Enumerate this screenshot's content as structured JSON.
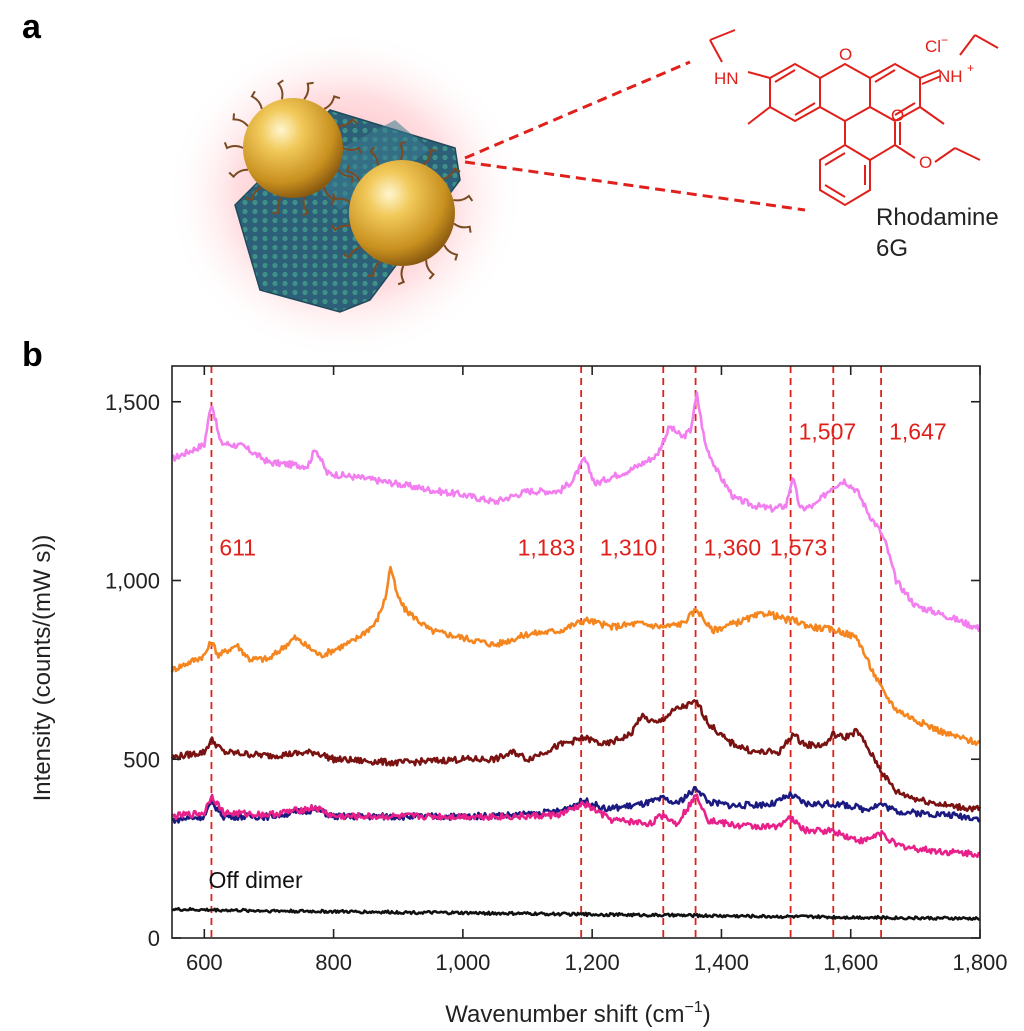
{
  "panels": {
    "a": "a",
    "b": "b"
  },
  "molecule": {
    "name_line1": "Rhodamine",
    "name_line2": "6G",
    "labels": {
      "hn": "HN",
      "nh": "NH",
      "nh_charge": "+",
      "cl": "Cl",
      "cl_charge": "−",
      "o_ring": "O",
      "o_carbonyl": "O",
      "o_ester": "O"
    }
  },
  "colors": {
    "peak_line": "#e0201b",
    "gold": "#d4a23a",
    "graphene": "#2f6f86",
    "ligand": "#7a4a22",
    "glow": "#ff7f8a"
  },
  "chart_data": {
    "type": "line",
    "xlabel": "Wavenumber shift (cm",
    "xlabel_sup": "−1",
    "xlabel_end": ")",
    "ylabel": "Intensity (counts/(mW s))",
    "xlim": [
      550,
      1800
    ],
    "ylim": [
      0,
      1600
    ],
    "x_ticks": [
      {
        "value": 600,
        "label": "600"
      },
      {
        "value": 800,
        "label": "800"
      },
      {
        "value": 1000,
        "label": "1,000"
      },
      {
        "value": 1200,
        "label": "1,200"
      },
      {
        "value": 1400,
        "label": "1,400"
      },
      {
        "value": 1600,
        "label": "1,600"
      },
      {
        "value": 1800,
        "label": "1,800"
      }
    ],
    "y_ticks": [
      {
        "value": 0,
        "label": "0"
      },
      {
        "value": 500,
        "label": "500"
      },
      {
        "value": 1000,
        "label": "1,000"
      },
      {
        "value": 1500,
        "label": "1,500"
      }
    ],
    "peak_lines": [
      611,
      1183,
      1310,
      1360,
      1507,
      1573,
      1647
    ],
    "peak_labels": [
      {
        "text": "611",
        "x": 611,
        "y": 1070
      },
      {
        "text": "1,183",
        "x": 1183,
        "y": 1070
      },
      {
        "text": "1,310",
        "x": 1310,
        "y": 1070
      },
      {
        "text": "1,360",
        "x": 1360,
        "y": 1070
      },
      {
        "text": "1,507",
        "x": 1507,
        "y": 1395
      },
      {
        "text": "1,573",
        "x": 1573,
        "y": 1070
      },
      {
        "text": "1,647",
        "x": 1647,
        "y": 1395
      }
    ],
    "annotation": {
      "text": "Off dimer",
      "x": 560,
      "y": 140
    },
    "series": [
      {
        "color": "#f27ef0",
        "x": [
          550,
          600,
          611,
          625,
          660,
          700,
          760,
          772,
          790,
          850,
          900,
          960,
          1000,
          1050,
          1100,
          1150,
          1170,
          1188,
          1205,
          1230,
          1260,
          1300,
          1320,
          1340,
          1352,
          1362,
          1375,
          1395,
          1420,
          1450,
          1480,
          1500,
          1510,
          1522,
          1545,
          1570,
          1590,
          1610,
          1630,
          1645,
          1655,
          1670,
          1700,
          1750,
          1800
        ],
        "y": [
          1340,
          1380,
          1500,
          1385,
          1375,
          1330,
          1320,
          1370,
          1300,
          1285,
          1270,
          1250,
          1240,
          1220,
          1250,
          1250,
          1280,
          1340,
          1270,
          1290,
          1310,
          1350,
          1430,
          1400,
          1420,
          1520,
          1380,
          1300,
          1230,
          1210,
          1200,
          1210,
          1290,
          1200,
          1210,
          1260,
          1280,
          1250,
          1180,
          1140,
          1100,
          1000,
          930,
          900,
          865
        ]
      },
      {
        "color": "#f5861f",
        "x": [
          550,
          600,
          611,
          622,
          650,
          670,
          700,
          740,
          780,
          830,
          865,
          880,
          888,
          898,
          910,
          950,
          1000,
          1050,
          1100,
          1150,
          1190,
          1230,
          1270,
          1310,
          1340,
          1362,
          1385,
          1420,
          1470,
          1500,
          1510,
          1540,
          1580,
          1610,
          1630,
          1650,
          1670,
          1700,
          1750,
          1800
        ],
        "y": [
          750,
          790,
          830,
          790,
          820,
          780,
          780,
          840,
          790,
          830,
          880,
          950,
          1040,
          960,
          920,
          860,
          840,
          820,
          850,
          860,
          890,
          870,
          880,
          870,
          880,
          920,
          860,
          880,
          910,
          890,
          890,
          870,
          860,
          840,
          760,
          690,
          640,
          610,
          570,
          545
        ]
      },
      {
        "color": "#7a1212",
        "x": [
          550,
          600,
          611,
          630,
          700,
          772,
          800,
          900,
          1000,
          1050,
          1080,
          1100,
          1150,
          1188,
          1220,
          1260,
          1275,
          1300,
          1330,
          1362,
          1380,
          1410,
          1450,
          1490,
          1510,
          1530,
          1560,
          1573,
          1590,
          1610,
          1630,
          1650,
          1670,
          1700,
          1750,
          1800
        ],
        "y": [
          505,
          520,
          555,
          520,
          510,
          520,
          500,
          490,
          500,
          500,
          520,
          500,
          540,
          560,
          540,
          570,
          620,
          600,
          640,
          660,
          600,
          550,
          520,
          520,
          570,
          540,
          540,
          570,
          560,
          580,
          520,
          460,
          410,
          390,
          370,
          360
        ]
      },
      {
        "color": "#1a1a80",
        "x": [
          550,
          600,
          611,
          630,
          700,
          772,
          800,
          900,
          1000,
          1100,
          1150,
          1188,
          1220,
          1280,
          1310,
          1330,
          1362,
          1380,
          1420,
          1480,
          1507,
          1530,
          1573,
          1600,
          1620,
          1647,
          1670,
          1700,
          1750,
          1800
        ],
        "y": [
          330,
          340,
          380,
          340,
          340,
          360,
          340,
          340,
          340,
          345,
          355,
          385,
          360,
          375,
          390,
          375,
          420,
          380,
          370,
          375,
          400,
          375,
          375,
          370,
          360,
          375,
          355,
          350,
          345,
          335
        ]
      },
      {
        "color": "#e8218a",
        "x": [
          550,
          600,
          611,
          630,
          700,
          772,
          800,
          900,
          1000,
          1100,
          1150,
          1188,
          1230,
          1290,
          1310,
          1330,
          1362,
          1380,
          1420,
          1480,
          1507,
          1530,
          1573,
          1600,
          1620,
          1647,
          1670,
          1700,
          1750,
          1800
        ],
        "y": [
          340,
          350,
          400,
          350,
          345,
          365,
          340,
          340,
          340,
          340,
          345,
          375,
          330,
          320,
          345,
          320,
          400,
          330,
          315,
          310,
          335,
          300,
          300,
          280,
          270,
          295,
          260,
          250,
          240,
          235
        ]
      },
      {
        "color": "#111111",
        "x": [
          550,
          700,
          900,
          1100,
          1300,
          1500,
          1700,
          1800
        ],
        "y": [
          80,
          76,
          72,
          68,
          64,
          60,
          56,
          54
        ]
      }
    ]
  }
}
